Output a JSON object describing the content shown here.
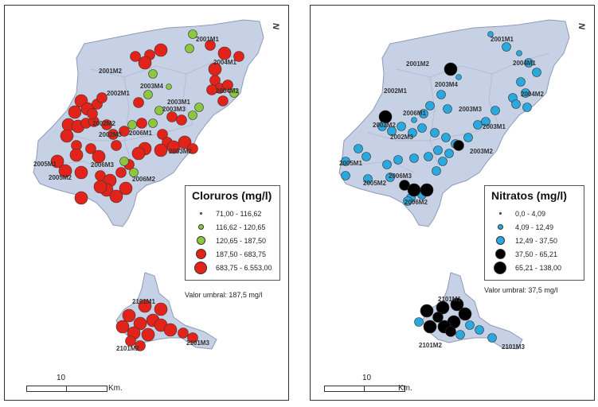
{
  "colors": {
    "land": "#c7d1e5",
    "land_stroke": "#8e9bb5",
    "border": "#b3bdd3",
    "chloride_low": "#8dc63f",
    "chloride_high": "#e2231a",
    "nitrate_low": "#29a9df",
    "nitrate_high": "#000000"
  },
  "panels": [
    {
      "id": "cloruros",
      "north_label": "N",
      "legend": {
        "title": "Cloruros (mg/l)",
        "classes": [
          {
            "label": "71,00 - 116,62",
            "color": "#8dc63f",
            "size": 3
          },
          {
            "label": "116,62 - 120,65",
            "color": "#8dc63f",
            "size": 7
          },
          {
            "label": "120,65 - 187,50",
            "color": "#8dc63f",
            "size": 11
          },
          {
            "label": "187,50 - 683,75",
            "color": "#e2231a",
            "size": 13
          },
          {
            "label": "683,75 - 6.553,00",
            "color": "#e2231a",
            "size": 16
          }
        ]
      },
      "threshold": "Valor umbral: 187,5 mg/l",
      "scale": {
        "value": "10",
        "unit": "Km."
      },
      "zone_labels": [
        "2001M1",
        "2001M2",
        "2002M1",
        "2003M4",
        "2004M1",
        "2004M2",
        "2003M1",
        "2003M3",
        "2002M2",
        "2002M3",
        "2006M1",
        "2003M2",
        "2006M3",
        "2005M1",
        "2005M2",
        "2006M2",
        "2101M1",
        "2101M2",
        "2101M3"
      ]
    },
    {
      "id": "nitratos",
      "north_label": "N",
      "legend": {
        "title": "Nitratos (mg/l)",
        "classes": [
          {
            "label": "0,0 - 4,09",
            "color": "#29a9df",
            "size": 3
          },
          {
            "label": "4,09 - 12,49",
            "color": "#29a9df",
            "size": 7
          },
          {
            "label": "12,49 - 37,50",
            "color": "#29a9df",
            "size": 11
          },
          {
            "label": "37,50 - 65,21",
            "color": "#000000",
            "size": 13
          },
          {
            "label": "65,21 - 138,00",
            "color": "#000000",
            "size": 16
          }
        ]
      },
      "threshold": "Valor umbral: 37,5 mg/l",
      "scale": {
        "value": "10",
        "unit": "Km."
      },
      "zone_labels": [
        "2001M1",
        "2001M2",
        "2004M1",
        "2003M4",
        "2002M1",
        "2004M2",
        "2003M3",
        "2006M1",
        "2002M2",
        "2003M1",
        "2002M3",
        "2003M2",
        "2005M1",
        "2006M3",
        "2005M2",
        "2006M2",
        "2101M1",
        "2101M2",
        "2101M3"
      ]
    }
  ]
}
